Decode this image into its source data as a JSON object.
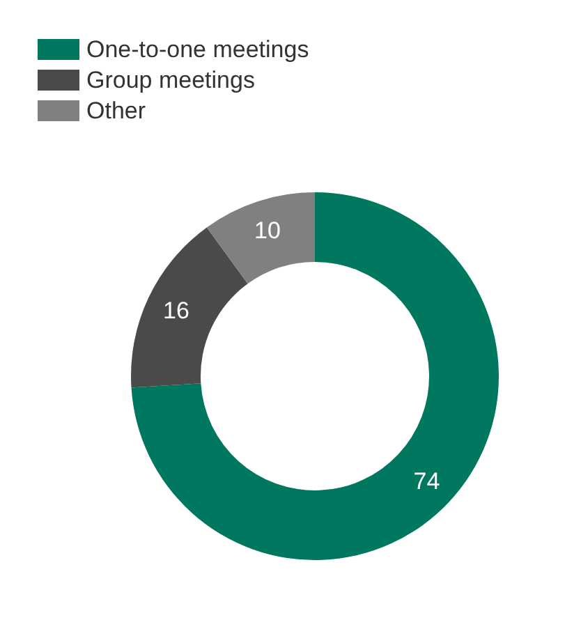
{
  "chart_data": {
    "type": "donut",
    "categories": [
      "One-to-one meetings",
      "Group meetings",
      "Other"
    ],
    "values": [
      74,
      16,
      10
    ],
    "colors": [
      "#00775f",
      "#4a4a4a",
      "#808080"
    ],
    "data_labels": true,
    "legend": "top left"
  }
}
